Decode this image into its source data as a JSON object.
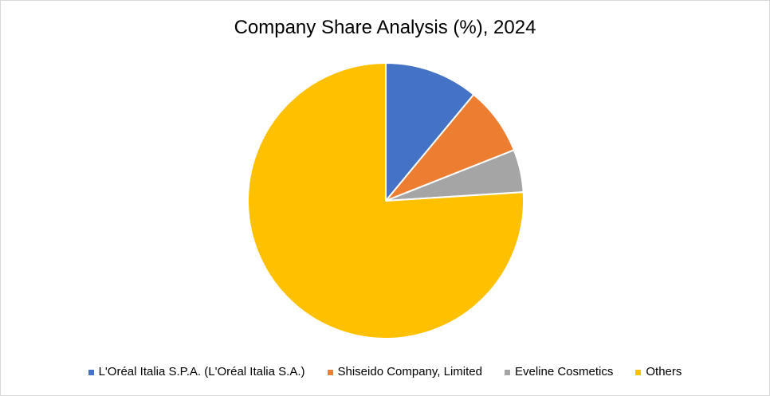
{
  "chart_data": {
    "type": "pie",
    "title": "Company Share Analysis (%), 2024",
    "categories": [
      "L'Oréal Italia S.P.A. (L'Oréal Italia S.A.)",
      "Shiseido Company, Limited",
      "Eveline Cosmetics",
      "Others"
    ],
    "values": [
      11,
      8,
      5,
      76
    ],
    "colors": [
      "#4472c4",
      "#ed7d31",
      "#a5a5a5",
      "#ffc000"
    ],
    "legend_position": "bottom",
    "start_angle": "12 o'clock",
    "direction": "clockwise"
  }
}
